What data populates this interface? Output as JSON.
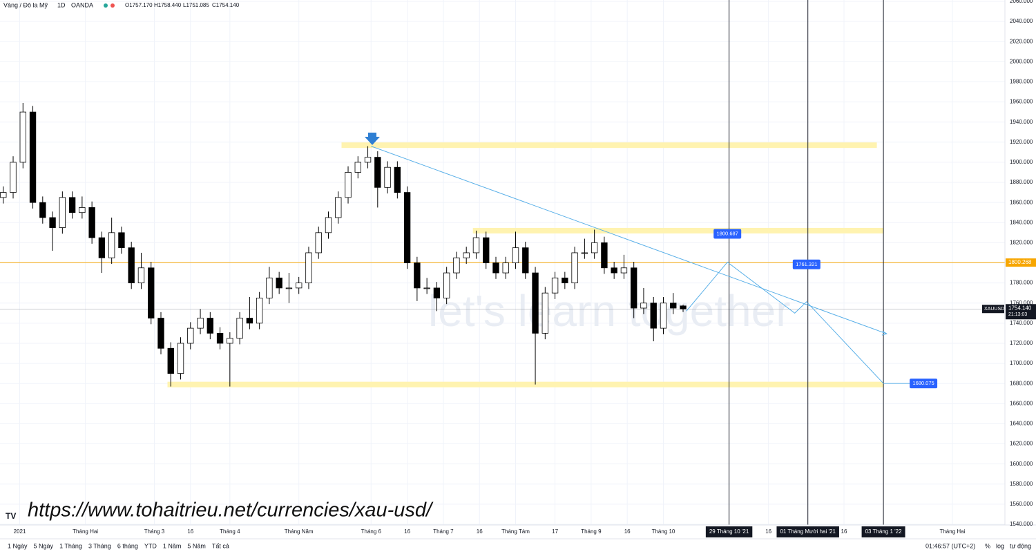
{
  "chart_data": {
    "type": "candlestick",
    "header": {
      "title": "Vàng / Đô la Mỹ",
      "interval": "1D",
      "source": "OANDA",
      "ohlc": [
        "O1757.170",
        "H1758.440",
        "L1751.085",
        "C1754.140"
      ]
    },
    "symbol": "XAUUSD",
    "x": [
      -5,
      -2,
      1,
      4,
      7,
      10,
      13,
      16,
      19,
      22,
      25,
      28,
      31,
      34,
      37,
      40,
      43,
      46,
      49,
      52,
      55,
      58,
      61,
      64,
      67,
      70,
      73,
      76,
      79,
      82,
      85,
      88,
      91,
      94,
      97,
      100,
      103,
      106,
      109,
      112,
      115,
      118,
      121,
      124,
      127,
      130,
      133,
      136,
      139,
      142,
      145,
      148,
      151,
      154,
      157,
      160,
      163,
      166,
      169,
      172,
      175,
      178,
      181,
      184,
      187,
      190,
      193,
      196,
      199,
      202
    ],
    "open": [
      1865,
      1870,
      1900,
      1950,
      1860,
      1845,
      1835,
      1865,
      1850,
      1855,
      1825,
      1805,
      1830,
      1815,
      1780,
      1795,
      1745,
      1715,
      1690,
      1720,
      1735,
      1745,
      1730,
      1720,
      1725,
      1745,
      1740,
      1765,
      1785,
      1775,
      1775,
      1780,
      1810,
      1830,
      1845,
      1865,
      1890,
      1900,
      1905,
      1875,
      1895,
      1870,
      1800,
      1775,
      1775,
      1765,
      1790,
      1805,
      1810,
      1825,
      1800,
      1790,
      1800,
      1815,
      1790,
      1730,
      1770,
      1785,
      1780,
      1810,
      1810,
      1820,
      1795,
      1790,
      1795,
      1755,
      1760,
      1735,
      1760,
      1757.17
    ],
    "high": [
      1876,
      1906,
      1959,
      1956,
      1866,
      1851,
      1871,
      1871,
      1866,
      1861,
      1831,
      1845,
      1836,
      1821,
      1810,
      1801,
      1751,
      1721,
      1726,
      1741,
      1754,
      1751,
      1736,
      1731,
      1751,
      1766,
      1771,
      1796,
      1791,
      1790,
      1786,
      1816,
      1836,
      1851,
      1871,
      1896,
      1906,
      1916,
      1911,
      1901,
      1901,
      1876,
      1806,
      1785,
      1781,
      1796,
      1811,
      1816,
      1832,
      1831,
      1806,
      1806,
      1831,
      1821,
      1796,
      1776,
      1791,
      1791,
      1816,
      1824,
      1833,
      1826,
      1801,
      1808,
      1801,
      1775,
      1766,
      1766,
      1770,
      1758.44
    ],
    "low": [
      1859,
      1864,
      1894,
      1854,
      1839,
      1812,
      1829,
      1844,
      1844,
      1819,
      1790,
      1799,
      1809,
      1774,
      1774,
      1739,
      1709,
      1677,
      1684,
      1714,
      1729,
      1724,
      1714,
      1677,
      1719,
      1734,
      1734,
      1759,
      1769,
      1760,
      1769,
      1774,
      1804,
      1824,
      1839,
      1859,
      1884,
      1894,
      1855,
      1869,
      1864,
      1794,
      1762,
      1769,
      1752,
      1759,
      1784,
      1799,
      1804,
      1794,
      1784,
      1784,
      1794,
      1784,
      1679,
      1724,
      1764,
      1774,
      1774,
      1804,
      1804,
      1789,
      1784,
      1784,
      1745,
      1749,
      1722,
      1729,
      1749,
      1751.085
    ],
    "close": [
      1870,
      1900,
      1950,
      1860,
      1845,
      1835,
      1865,
      1850,
      1855,
      1825,
      1805,
      1830,
      1815,
      1780,
      1795,
      1745,
      1715,
      1690,
      1720,
      1735,
      1745,
      1730,
      1720,
      1725,
      1745,
      1740,
      1765,
      1785,
      1775,
      1775,
      1780,
      1810,
      1830,
      1845,
      1865,
      1890,
      1900,
      1905,
      1875,
      1895,
      1870,
      1800,
      1775,
      1775,
      1765,
      1790,
      1805,
      1810,
      1825,
      1800,
      1790,
      1800,
      1815,
      1790,
      1730,
      1770,
      1785,
      1780,
      1810,
      1810,
      1820,
      1795,
      1790,
      1795,
      1755,
      1760,
      1735,
      1760,
      1755,
      1754.14
    ],
    "up_color": "#ffffff",
    "down_color": "#000000",
    "last_price": {
      "value": 1754.14,
      "label": "1754.140",
      "countdown": "21:13:03"
    },
    "xlim": [
      -6,
      300
    ],
    "ylim": [
      1540,
      2060
    ],
    "xticks": [
      {
        "value": 0,
        "label": "2021"
      },
      {
        "value": 20,
        "label": "Tháng Hai"
      },
      {
        "value": 41,
        "label": "Tháng 3"
      },
      {
        "value": 52,
        "label": "16"
      },
      {
        "value": 64,
        "label": "Tháng 4"
      },
      {
        "value": 85,
        "label": "Tháng Năm"
      },
      {
        "value": 107,
        "label": "Tháng 6"
      },
      {
        "value": 118,
        "label": "16"
      },
      {
        "value": 129,
        "label": "Tháng 7"
      },
      {
        "value": 140,
        "label": "16"
      },
      {
        "value": 151,
        "label": "Tháng Tám"
      },
      {
        "value": 163,
        "label": "17"
      },
      {
        "value": 174,
        "label": "Tháng 9"
      },
      {
        "value": 185,
        "label": "16"
      },
      {
        "value": 196,
        "label": "Tháng 10"
      },
      {
        "value": 228,
        "label": "16"
      },
      {
        "value": 251,
        "label": "16"
      },
      {
        "value": 284,
        "label": "Tháng Hai"
      }
    ],
    "yticks": [
      {
        "value": 1540,
        "label": "1540.000"
      },
      {
        "value": 1560,
        "label": "1560.000"
      },
      {
        "value": 1580,
        "label": "1580.000"
      },
      {
        "value": 1600,
        "label": "1600.000"
      },
      {
        "value": 1620,
        "label": "1620.000"
      },
      {
        "value": 1640,
        "label": "1640.000"
      },
      {
        "value": 1660,
        "label": "1660.000"
      },
      {
        "value": 1680,
        "label": "1680.000"
      },
      {
        "value": 1700,
        "label": "1700.000"
      },
      {
        "value": 1720,
        "label": "1720.000"
      },
      {
        "value": 1740,
        "label": "1740.000"
      },
      {
        "value": 1760,
        "label": "1760.000"
      },
      {
        "value": 1780,
        "label": "1780.000"
      },
      {
        "value": 1800,
        "label": "1800.000"
      },
      {
        "value": 1820,
        "label": "1820.000"
      },
      {
        "value": 1840,
        "label": "1840.000"
      },
      {
        "value": 1860,
        "label": "1860.000"
      },
      {
        "value": 1880,
        "label": "1880.000"
      },
      {
        "value": 1900,
        "label": "1900.000"
      },
      {
        "value": 1920,
        "label": "1920.000"
      },
      {
        "value": 1940,
        "label": "1940.000"
      },
      {
        "value": 1960,
        "label": "1960.000"
      },
      {
        "value": 1980,
        "label": "1980.000"
      },
      {
        "value": 2000,
        "label": "2000.000"
      },
      {
        "value": 2020,
        "label": "2020.000"
      },
      {
        "value": 2040,
        "label": "2040.000"
      },
      {
        "value": 2060,
        "label": "2060.000"
      }
    ],
    "grid": true,
    "vlines": [
      {
        "value": 216,
        "label": "29 Tháng 10 '21"
      },
      {
        "value": 240,
        "label": "01 Tháng Mười hai '21"
      },
      {
        "value": 263,
        "label": "03 Tháng 1 '22"
      }
    ],
    "hline": {
      "value": 1800.268,
      "color": "#f7a600"
    },
    "zones": [
      {
        "value": 1917,
        "x": [
          98,
          261
        ]
      },
      {
        "value": 1832,
        "x": [
          138,
          263
        ]
      },
      {
        "value": 1679,
        "x": [
          45,
          263
        ]
      }
    ],
    "zone_color": "#fff3b0",
    "trendline": {
      "x": [
        107,
        264
      ],
      "y": [
        1916,
        1729.5
      ],
      "color": "#5ab0e8"
    },
    "projection": {
      "x": [
        203,
        215.5,
        236,
        239.6,
        263
      ],
      "y": [
        1752,
        1800.687,
        1750,
        1761.321,
        1680.075
      ],
      "color": "#5ab0e8"
    },
    "watermark_url": "https://www.tohaitrieu.net/currencies/xau-usd/",
    "watermark_slogan": "let's learn together",
    "toolbar": {
      "ranges": [
        "1 Ngày",
        "5 Ngày",
        "1 Tháng",
        "3 Tháng",
        "6 tháng",
        "YTD",
        "1 Năm",
        "5 Năm",
        "Tất cả"
      ],
      "clock": "01:46:57 (UTC+2)",
      "percent": "%",
      "log": "log",
      "auto": "tự động"
    }
  }
}
